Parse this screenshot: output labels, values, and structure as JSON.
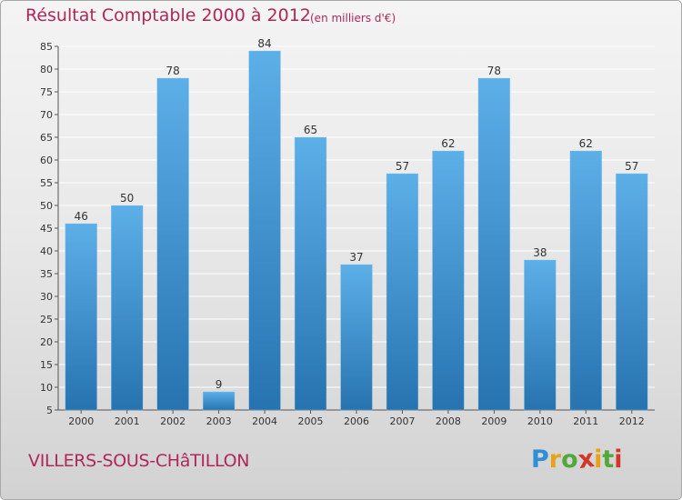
{
  "chart_data": {
    "type": "bar",
    "title": "Résultat Comptable 2000 à 2012",
    "subtitle": "(en milliers d'€)",
    "categories": [
      "2000",
      "2001",
      "2002",
      "2003",
      "2004",
      "2005",
      "2006",
      "2007",
      "2008",
      "2009",
      "2010",
      "2011",
      "2012"
    ],
    "values": [
      46,
      50,
      78,
      9,
      84,
      65,
      37,
      57,
      62,
      78,
      38,
      62,
      57
    ],
    "ylim": [
      5,
      85
    ],
    "yticks": [
      5,
      10,
      15,
      20,
      25,
      30,
      35,
      40,
      45,
      50,
      55,
      60,
      65,
      70,
      75,
      80,
      85
    ],
    "xlabel": "",
    "ylabel": "",
    "grid": true,
    "data_labels": true,
    "colors": {
      "bar_top": "#5dafe8",
      "bar_bottom": "#2673b0",
      "grid": "#ffffff",
      "text_accent": "#b0275a"
    }
  },
  "footer": {
    "commune": "VILLERS-SOUS-CHâTILLON"
  },
  "logo": {
    "letters": [
      "P",
      "r",
      "o",
      "x",
      "i",
      "t",
      "i"
    ],
    "colors": [
      "#2e8fd6",
      "#e8a21a",
      "#52a83a",
      "#d4362a",
      "#e8a21a",
      "#52a83a",
      "#d4362a"
    ]
  }
}
